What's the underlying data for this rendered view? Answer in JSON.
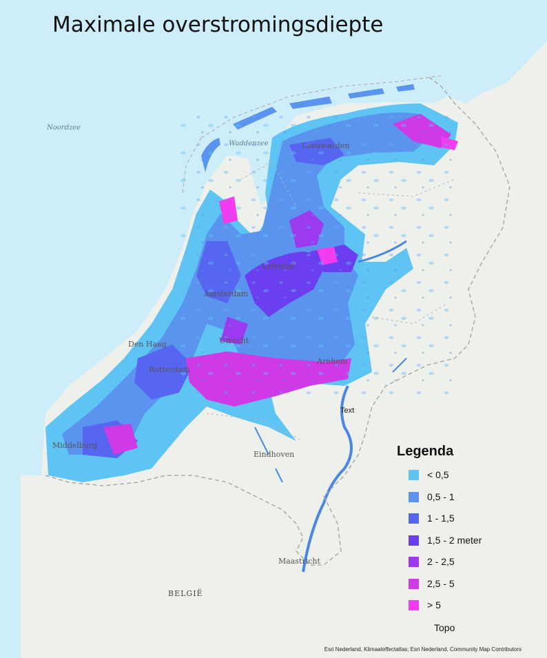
{
  "title": "Maximale overstromingsdiepte",
  "map_labels": {
    "noordzee": "Noordzee",
    "waddenzee": "Waddenzee",
    "leeuwarden": "Leeuwarden",
    "lelystad": "Lelystad",
    "amsterdam": "Amsterdam",
    "den_haag": "Den Haag",
    "rotterdam": "Rotterdam",
    "utrecht": "Utrecht",
    "arnhem": "Arnhem",
    "middelburg": "Middelburg",
    "eindhoven": "Eindhoven",
    "maastricht": "Maastricht",
    "belgie": "BELGIË",
    "text_callout": "Text"
  },
  "legend": {
    "title": "Legenda",
    "items": [
      {
        "label": "< 0,5",
        "color": "#5ec4f4"
      },
      {
        "label": "0,5 - 1",
        "color": "#5a94ee"
      },
      {
        "label": "1 - 1,5",
        "color": "#5766f0"
      },
      {
        "label": "1,5 - 2 meter",
        "color": "#6b3ef0"
      },
      {
        "label": "2 - 2,5",
        "color": "#9b3aee"
      },
      {
        "label": "2,5 - 5",
        "color": "#cd3ae6"
      },
      {
        "label": "> 5",
        "color": "#f23cf0"
      }
    ],
    "topo_label": "Topo"
  },
  "attribution": "Esri Nederland, Klimaateffectatlas; Esri Nederland, Community Map Contributors",
  "colors": {
    "sea": "#cdeef9",
    "land": "#eef0ec",
    "border": "#a9a9a9",
    "river": "#4a86e8"
  }
}
